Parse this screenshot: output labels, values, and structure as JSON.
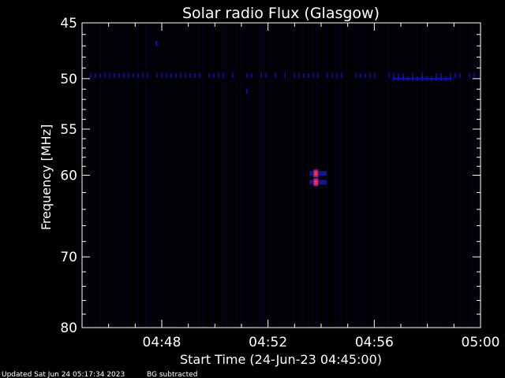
{
  "chart_data": {
    "type": "heatmap",
    "title": "Solar radio Flux (Glasgow)",
    "xlabel": "Start Time (24-Jun-23 04:45:00)",
    "ylabel": "Frequency [MHz]",
    "x_unit": "minutes after 04:45:00",
    "xlim": [
      0,
      15
    ],
    "ylim": [
      45,
      80
    ],
    "y_scale": "log",
    "y_inverted": true,
    "x_ticks": [
      {
        "value": 3,
        "label": "04:48"
      },
      {
        "value": 7,
        "label": "04:52"
      },
      {
        "value": 11,
        "label": "04:56"
      },
      {
        "value": 15,
        "label": "05:00"
      }
    ],
    "y_ticks": [
      {
        "value": 45,
        "label": "45"
      },
      {
        "value": 50,
        "label": "50"
      },
      {
        "value": 55,
        "label": "55"
      },
      {
        "value": 60,
        "label": "60"
      },
      {
        "value": 70,
        "label": "70"
      },
      {
        "value": 80,
        "label": "80"
      }
    ],
    "background_color": "#000000",
    "data_color": "#1010c0",
    "hot_color": "#ff3020",
    "features": [
      {
        "name": "interference-band",
        "freq": 49.7,
        "t_start": 0.3,
        "t_end": 15,
        "intensity": 0.5
      },
      {
        "name": "interference-band-strong",
        "freq": 50.0,
        "t_start": 11.7,
        "t_end": 13.9,
        "intensity": 0.7
      },
      {
        "name": "burst",
        "freq": 59.8,
        "t": 8.8,
        "intensity": 1.0
      },
      {
        "name": "burst",
        "freq": 60.8,
        "t": 8.8,
        "intensity": 1.0
      },
      {
        "name": "spot",
        "freq": 46.8,
        "t": 2.8,
        "intensity": 0.5
      },
      {
        "name": "spot",
        "freq": 51.2,
        "t": 6.2,
        "intensity": 0.4
      }
    ]
  },
  "footer": {
    "updated": "Updated Sat Jun 24 05:17:34 2023",
    "note": "BG subtracted"
  }
}
